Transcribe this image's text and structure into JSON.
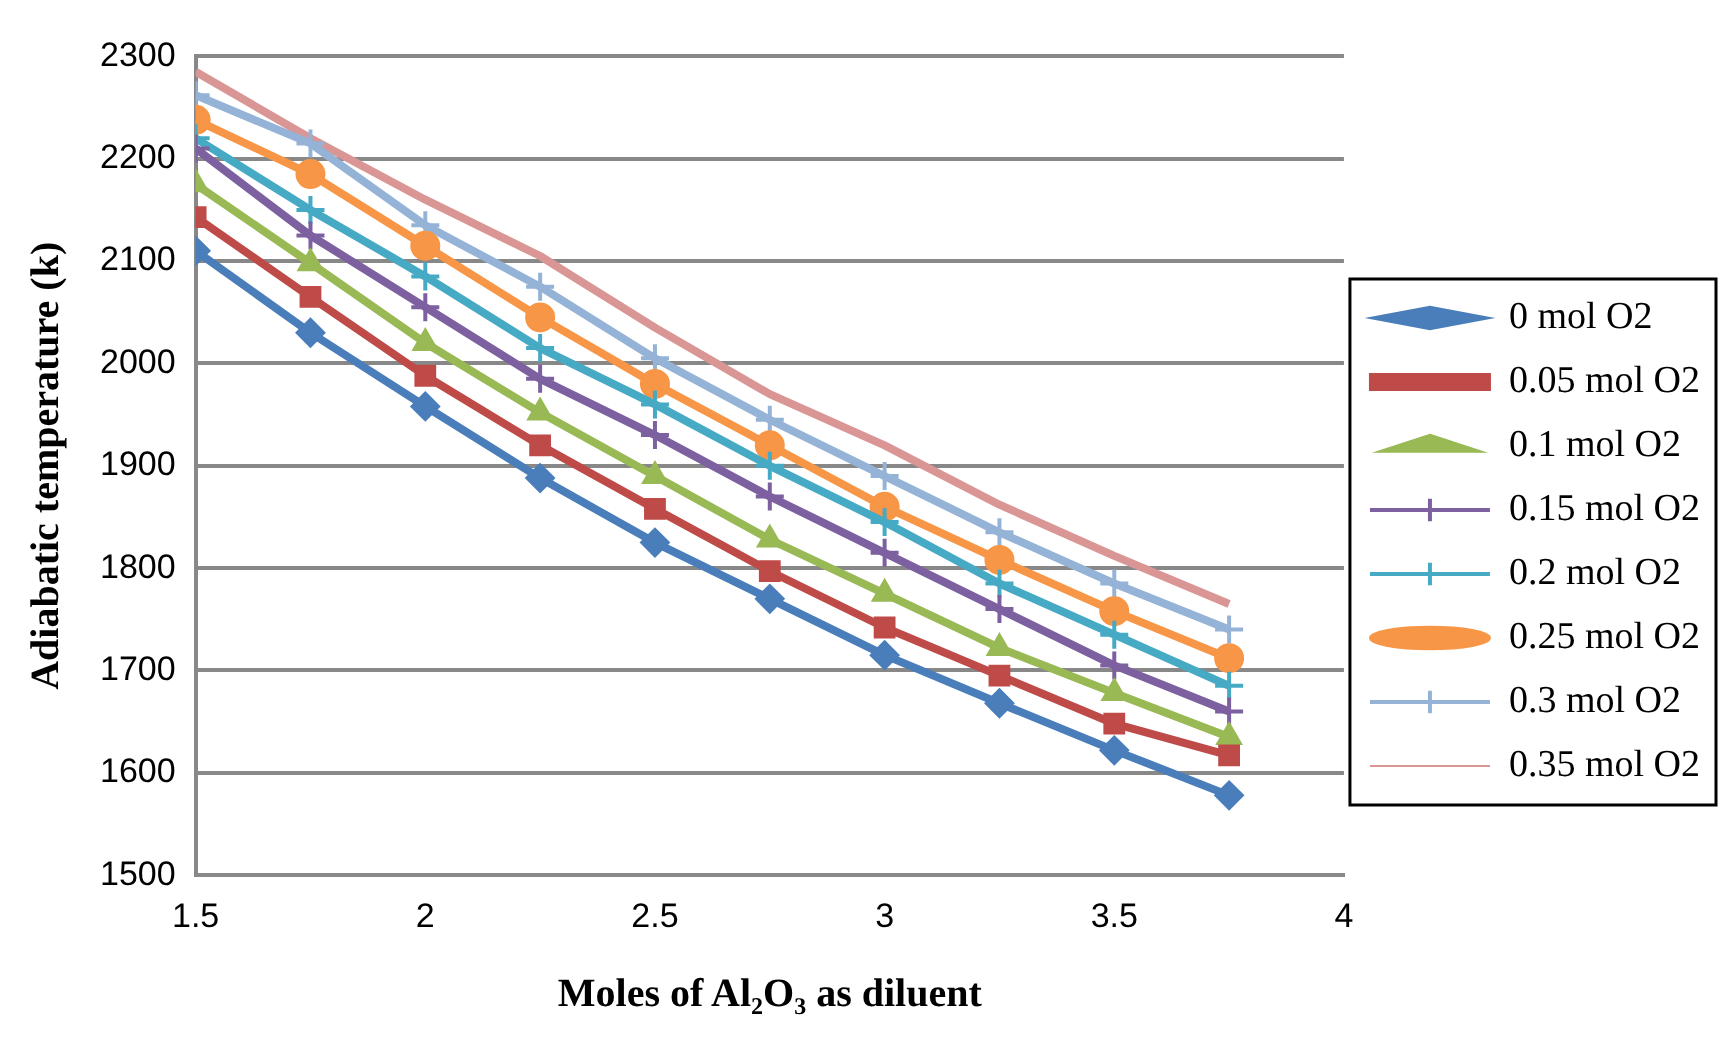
{
  "chart_data": {
    "type": "line",
    "xlabel": "Moles of Al₂O₃ as diluent",
    "ylabel": "Adiabatic temperature (k)",
    "x": [
      1.5,
      1.75,
      2,
      2.25,
      2.5,
      2.75,
      3,
      3.25,
      3.5,
      3.75
    ],
    "xlim": [
      1.5,
      4
    ],
    "xticks": [
      1.5,
      2,
      2.5,
      3,
      3.5,
      4
    ],
    "ylim": [
      1500,
      2300
    ],
    "yticks": [
      1500,
      1600,
      1700,
      1800,
      1900,
      2000,
      2100,
      2200,
      2300
    ],
    "grid": "y",
    "legend": "right",
    "series": [
      {
        "name": "0 mol O2",
        "color": "#4a7ebb",
        "marker": "diamond",
        "values": [
          2110,
          2030,
          1958,
          1888,
          1825,
          1770,
          1715,
          1668,
          1622,
          1578
        ]
      },
      {
        "name": "0.05 mol O2",
        "color": "#be4b48",
        "marker": "square",
        "values": [
          2143,
          2065,
          1988,
          1920,
          1858,
          1797,
          1742,
          1695,
          1648,
          1617
        ]
      },
      {
        "name": "0.1 mol O2",
        "color": "#98b954",
        "marker": "triangle",
        "values": [
          2175,
          2098,
          2020,
          1952,
          1890,
          1828,
          1775,
          1722,
          1678,
          1635
        ]
      },
      {
        "name": "0.15 mol O2",
        "color": "#7d60a0",
        "marker": "cross",
        "values": [
          2210,
          2125,
          2055,
          1985,
          1930,
          1870,
          1815,
          1760,
          1705,
          1660
        ]
      },
      {
        "name": "0.2 mol O2",
        "color": "#46aac5",
        "marker": "cross",
        "values": [
          2220,
          2150,
          2085,
          2015,
          1960,
          1900,
          1845,
          1785,
          1735,
          1685
        ]
      },
      {
        "name": "0.25 mol O2",
        "color": "#f79646",
        "marker": "circle",
        "values": [
          2238,
          2185,
          2115,
          2045,
          1980,
          1920,
          1860,
          1808,
          1758,
          1712
        ]
      },
      {
        "name": "0.3 mol O2",
        "color": "#95b3d7",
        "marker": "cross",
        "values": [
          2262,
          2215,
          2135,
          2075,
          2005,
          1945,
          1890,
          1835,
          1785,
          1740
        ]
      },
      {
        "name": "0.35 mol O2",
        "color": "#d99694",
        "marker": "none",
        "values": [
          2285,
          2220,
          2160,
          2105,
          2035,
          1970,
          1920,
          1862,
          1812,
          1765
        ]
      }
    ]
  }
}
